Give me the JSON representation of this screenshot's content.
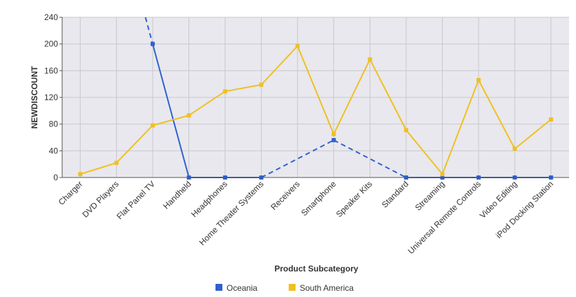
{
  "chart_data": {
    "type": "line",
    "xlabel": "Product Subcategory",
    "ylabel": "NEWDISCOUNT",
    "ylim": [
      0,
      240
    ],
    "yticks": [
      0,
      40,
      80,
      120,
      160,
      200,
      240
    ],
    "grid": true,
    "legend_position": "bottom",
    "categories": [
      "Charger",
      "DVD Players",
      "Flat Panel TV",
      "Handheld",
      "Headphones",
      "Home Theater Systems",
      "Receivers",
      "Smartphone",
      "Speaker Kits",
      "Standard",
      "Streaming",
      "Universal Remote Controls",
      "Video Editing",
      "iPod Docking Station"
    ],
    "series": [
      {
        "name": "Oceania",
        "color": "#3060d0",
        "values": [
          null,
          null,
          200,
          0,
          0,
          0,
          null,
          56,
          null,
          0,
          0,
          0,
          0,
          0
        ],
        "note_dashed_gap_interpolation": true
      },
      {
        "name": "South America",
        "color": "#f0c020",
        "values": [
          5,
          22,
          78,
          93,
          129,
          139,
          197,
          65,
          177,
          71,
          5,
          146,
          43,
          87
        ]
      }
    ]
  }
}
